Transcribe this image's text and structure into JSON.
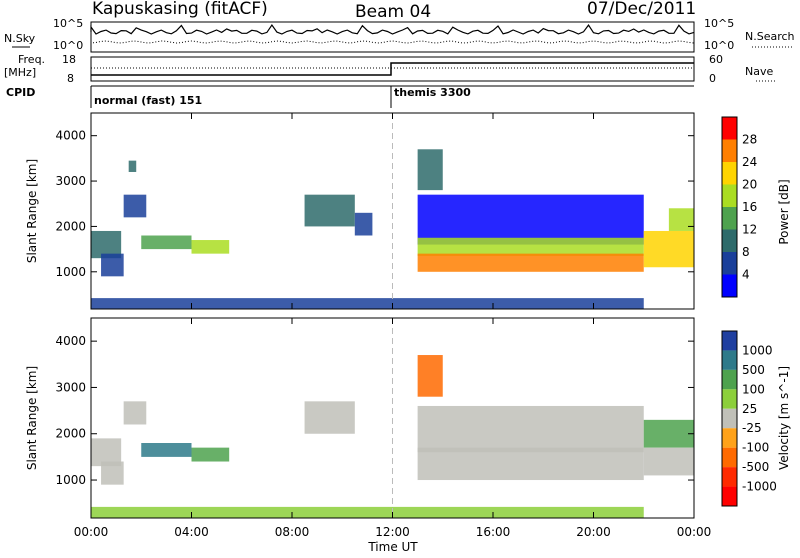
{
  "header": {
    "station": "Kapuskasing (fitACF)",
    "beam": "Beam 04",
    "date": "07/Dec/2011"
  },
  "housekeeping": {
    "nsky_label": "N.Sky",
    "nsearch_label": "N.Search",
    "freq_label_1": "Freq.",
    "freq_label_2": "[MHz]",
    "nave_label": "Nave",
    "cpid_label": "CPID",
    "noise_ticks_left": [
      "10^5",
      "10^0"
    ],
    "noise_ticks_right": [
      "10^5",
      "10^0"
    ],
    "freq_ticks": [
      "18",
      "8"
    ],
    "nave_ticks": [
      "60",
      "0"
    ],
    "cpid_segments": [
      {
        "start_hour": 0,
        "label": "normal (fast) 151"
      },
      {
        "start_hour": 12,
        "label": "themis 3300"
      }
    ]
  },
  "chart_data": [
    {
      "type": "heatmap",
      "title": "Power",
      "xlabel": "Time UT",
      "ylabel": "Slant Range [km]",
      "xlim": [
        0,
        24
      ],
      "ylim": [
        180,
        4500
      ],
      "x_ticks": [
        "00:00",
        "04:00",
        "08:00",
        "12:00",
        "16:00",
        "20:00",
        "00:00"
      ],
      "y_ticks": [
        1000,
        2000,
        3000,
        4000
      ],
      "colorbar_label": "Power [dB]",
      "colorbar_ticks": [
        "28",
        "24",
        "20",
        "16",
        "12",
        "8",
        "4"
      ],
      "colorbar_colors": [
        "#ff0000",
        "#ff7f00",
        "#ffd400",
        "#aadd22",
        "#4ea24e",
        "#2e6b6b",
        "#1a3f9a",
        "#0000ff"
      ],
      "regions": [
        {
          "t0": 0.0,
          "t1": 1.2,
          "r0": 1300,
          "r1": 1900,
          "level": 2
        },
        {
          "t0": 0.4,
          "t1": 1.3,
          "r0": 900,
          "r1": 1400,
          "level": 1
        },
        {
          "t0": 1.3,
          "t1": 2.2,
          "r0": 2200,
          "r1": 2700,
          "level": 1
        },
        {
          "t0": 2.0,
          "t1": 4.0,
          "r0": 1500,
          "r1": 1800,
          "level": 3
        },
        {
          "t0": 4.0,
          "t1": 5.5,
          "r0": 1400,
          "r1": 1700,
          "level": 4
        },
        {
          "t0": 1.5,
          "t1": 1.8,
          "r0": 3200,
          "r1": 3450,
          "level": 2
        },
        {
          "t0": 8.5,
          "t1": 10.5,
          "r0": 2000,
          "r1": 2700,
          "level": 2
        },
        {
          "t0": 10.5,
          "t1": 11.2,
          "r0": 1800,
          "r1": 2300,
          "level": 1
        },
        {
          "t0": 13.0,
          "t1": 14.0,
          "r0": 2800,
          "r1": 3700,
          "level": 2
        },
        {
          "t0": 13.0,
          "t1": 22.0,
          "r0": 1600,
          "r1": 2700,
          "level": 0
        },
        {
          "t0": 13.0,
          "t1": 22.0,
          "r0": 1350,
          "r1": 1750,
          "level": 4
        },
        {
          "t0": 13.0,
          "t1": 22.0,
          "r0": 1000,
          "r1": 1400,
          "level": 6
        },
        {
          "t0": 22.0,
          "t1": 24.0,
          "r0": 1100,
          "r1": 1900,
          "level": 5
        },
        {
          "t0": 23.0,
          "t1": 24.0,
          "r0": 1900,
          "r1": 2400,
          "level": 4
        },
        {
          "t0": 0.0,
          "t1": 22.0,
          "r0": 180,
          "r1": 420,
          "level": 1
        }
      ]
    },
    {
      "type": "heatmap",
      "title": "Velocity",
      "xlabel": "Time UT",
      "ylabel": "Slant Range [km]",
      "xlim": [
        0,
        24
      ],
      "ylim": [
        180,
        4500
      ],
      "x_ticks": [
        "00:00",
        "04:00",
        "08:00",
        "12:00",
        "16:00",
        "20:00",
        "00:00"
      ],
      "y_ticks": [
        1000,
        2000,
        3000,
        4000
      ],
      "colorbar_label": "Velocity [m s^-1]",
      "colorbar_ticks": [
        "1000",
        "500",
        "100",
        "25",
        "-25",
        "-100",
        "-500",
        "-1000"
      ],
      "colorbar_colors": [
        "#1f3fa0",
        "#2e7a8a",
        "#4ea24e",
        "#8ccf3a",
        "#c0c0b8",
        "#ffa21a",
        "#ff6a00",
        "#ff2a00",
        "#ff0000"
      ],
      "regions": [
        {
          "t0": 0.0,
          "t1": 1.2,
          "r0": 1300,
          "r1": 1900,
          "level": 4
        },
        {
          "t0": 0.4,
          "t1": 1.3,
          "r0": 900,
          "r1": 1400,
          "level": 4
        },
        {
          "t0": 1.3,
          "t1": 2.2,
          "r0": 2200,
          "r1": 2700,
          "level": 4
        },
        {
          "t0": 2.0,
          "t1": 4.0,
          "r0": 1500,
          "r1": 1800,
          "level": 7
        },
        {
          "t0": 4.0,
          "t1": 5.5,
          "r0": 1400,
          "r1": 1700,
          "level": 6
        },
        {
          "t0": 8.5,
          "t1": 10.5,
          "r0": 2000,
          "r1": 2700,
          "level": 4
        },
        {
          "t0": 13.0,
          "t1": 14.0,
          "r0": 2800,
          "r1": 3700,
          "level": 2
        },
        {
          "t0": 13.0,
          "t1": 22.0,
          "r0": 1600,
          "r1": 2600,
          "level": 4
        },
        {
          "t0": 13.0,
          "t1": 22.0,
          "r0": 1000,
          "r1": 1700,
          "level": 4
        },
        {
          "t0": 22.0,
          "t1": 24.0,
          "r0": 1700,
          "r1": 2300,
          "level": 6
        },
        {
          "t0": 22.0,
          "t1": 24.0,
          "r0": 1100,
          "r1": 1700,
          "level": 4
        },
        {
          "t0": 0.0,
          "t1": 22.0,
          "r0": 180,
          "r1": 420,
          "level": 5
        }
      ]
    }
  ]
}
